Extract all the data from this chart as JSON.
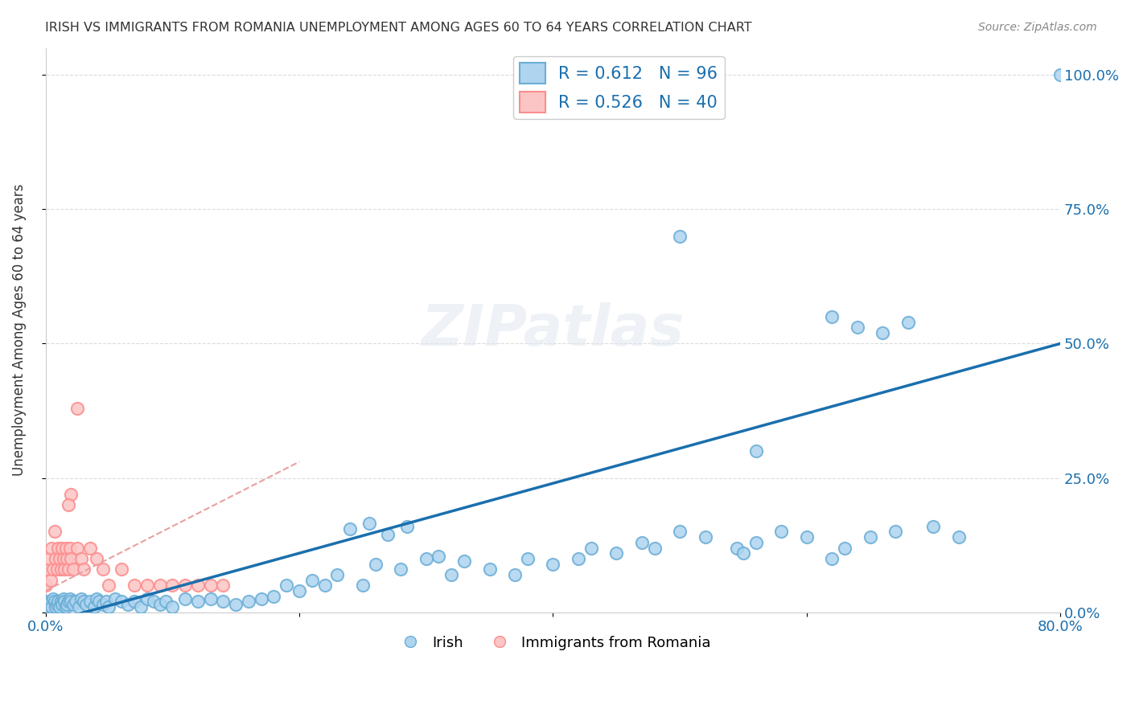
{
  "title": "IRISH VS IMMIGRANTS FROM ROMANIA UNEMPLOYMENT AMONG AGES 60 TO 64 YEARS CORRELATION CHART",
  "source": "Source: ZipAtlas.com",
  "ylabel": "Unemployment Among Ages 60 to 64 years",
  "xlim": [
    0.0,
    0.8
  ],
  "ylim": [
    0.0,
    1.05
  ],
  "irish_color_face": "#aed4f0",
  "irish_color_edge": "#6baed6",
  "romanian_color_face": "#fcc5c5",
  "romanian_color_edge": "#fc8d8d",
  "irish_R": 0.612,
  "irish_N": 96,
  "romanian_R": 0.526,
  "romanian_N": 40,
  "watermark": "ZIPatlas",
  "legend_irish_label": "Irish",
  "legend_romanian_label": "Immigrants from Romania",
  "irish_x": [
    0.0,
    0.002,
    0.003,
    0.004,
    0.005,
    0.006,
    0.007,
    0.008,
    0.009,
    0.01,
    0.011,
    0.012,
    0.013,
    0.014,
    0.015,
    0.016,
    0.017,
    0.018,
    0.019,
    0.02,
    0.022,
    0.024,
    0.026,
    0.028,
    0.03,
    0.032,
    0.035,
    0.038,
    0.04,
    0.042,
    0.045,
    0.048,
    0.05,
    0.055,
    0.06,
    0.065,
    0.07,
    0.075,
    0.08,
    0.085,
    0.09,
    0.095,
    0.1,
    0.11,
    0.12,
    0.13,
    0.14,
    0.15,
    0.16,
    0.17,
    0.18,
    0.19,
    0.2,
    0.21,
    0.22,
    0.23,
    0.25,
    0.26,
    0.28,
    0.3,
    0.32,
    0.35,
    0.37,
    0.38,
    0.4,
    0.42,
    0.43,
    0.45,
    0.47,
    0.48,
    0.5,
    0.52,
    0.545,
    0.55,
    0.56,
    0.58,
    0.6,
    0.62,
    0.63,
    0.65,
    0.67,
    0.7,
    0.72,
    0.62,
    0.64,
    0.66,
    0.68,
    0.5,
    0.56,
    0.8,
    0.24,
    0.255,
    0.27,
    0.285,
    0.31,
    0.33
  ],
  "irish_y": [
    0.02,
    0.01,
    0.015,
    0.02,
    0.01,
    0.025,
    0.02,
    0.01,
    0.015,
    0.02,
    0.01,
    0.02,
    0.015,
    0.025,
    0.02,
    0.01,
    0.015,
    0.02,
    0.025,
    0.02,
    0.015,
    0.02,
    0.01,
    0.025,
    0.02,
    0.015,
    0.02,
    0.01,
    0.025,
    0.02,
    0.015,
    0.02,
    0.01,
    0.025,
    0.02,
    0.015,
    0.02,
    0.01,
    0.025,
    0.02,
    0.015,
    0.02,
    0.01,
    0.025,
    0.02,
    0.025,
    0.02,
    0.015,
    0.02,
    0.025,
    0.03,
    0.05,
    0.04,
    0.06,
    0.05,
    0.07,
    0.05,
    0.09,
    0.08,
    0.1,
    0.07,
    0.08,
    0.07,
    0.1,
    0.09,
    0.1,
    0.12,
    0.11,
    0.13,
    0.12,
    0.15,
    0.14,
    0.12,
    0.11,
    0.13,
    0.15,
    0.14,
    0.1,
    0.12,
    0.14,
    0.15,
    0.16,
    0.14,
    0.55,
    0.53,
    0.52,
    0.54,
    0.7,
    0.3,
    1.0,
    0.155,
    0.165,
    0.145,
    0.16,
    0.105,
    0.095
  ],
  "romanian_x": [
    0.0,
    0.002,
    0.003,
    0.004,
    0.005,
    0.006,
    0.007,
    0.008,
    0.009,
    0.01,
    0.011,
    0.012,
    0.013,
    0.014,
    0.015,
    0.016,
    0.017,
    0.018,
    0.019,
    0.02,
    0.022,
    0.025,
    0.028,
    0.03,
    0.035,
    0.04,
    0.045,
    0.05,
    0.06,
    0.07,
    0.08,
    0.09,
    0.1,
    0.11,
    0.12,
    0.13,
    0.14,
    0.025,
    0.02,
    0.018
  ],
  "romanian_y": [
    0.05,
    0.08,
    0.1,
    0.06,
    0.12,
    0.08,
    0.15,
    0.1,
    0.08,
    0.12,
    0.1,
    0.08,
    0.12,
    0.1,
    0.08,
    0.12,
    0.1,
    0.08,
    0.12,
    0.1,
    0.08,
    0.12,
    0.1,
    0.08,
    0.12,
    0.1,
    0.08,
    0.05,
    0.08,
    0.05,
    0.05,
    0.05,
    0.05,
    0.05,
    0.05,
    0.05,
    0.05,
    0.38,
    0.22,
    0.2
  ],
  "irish_line_x": [
    0.0,
    0.8
  ],
  "irish_line_y": [
    -0.02,
    0.5
  ],
  "romanian_line_x": [
    0.0,
    0.2
  ],
  "romanian_line_y": [
    0.04,
    0.28
  ],
  "irish_line_color": "#1a6fad",
  "romanian_line_color": "#e8a0a0",
  "x_ticks": [
    0.0,
    0.2,
    0.4,
    0.6,
    0.8
  ],
  "x_tick_labels": [
    "0.0%",
    "",
    "",
    "",
    "80.0%"
  ],
  "y_ticks": [
    0.0,
    0.25,
    0.5,
    0.75,
    1.0
  ],
  "y_tick_labels_right": [
    "0.0%",
    "25.0%",
    "50.0%",
    "75.0%",
    "100.0%"
  ],
  "grid_color": "#cccccc",
  "title_fontsize": 11.5,
  "tick_label_color": "#1a6fad",
  "tick_fontsize": 13
}
